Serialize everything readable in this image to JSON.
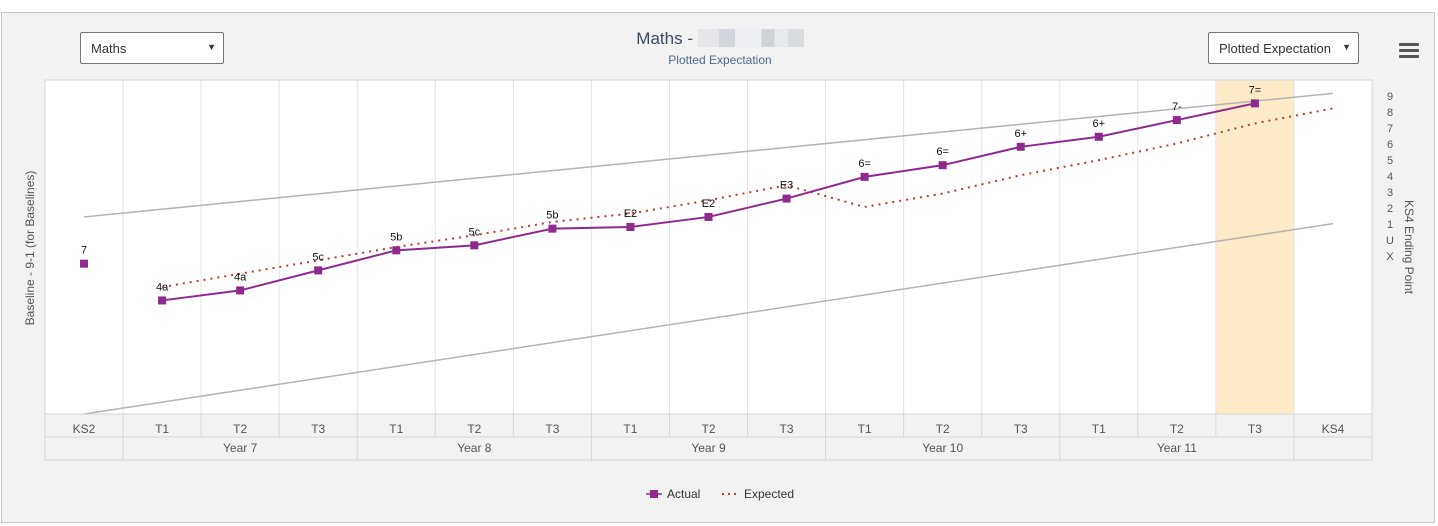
{
  "subject_select": {
    "value": "Maths",
    "arrow": "▼"
  },
  "view_select": {
    "value": "Plotted Expectation",
    "arrow": "▼"
  },
  "header": {
    "title": "Maths - ",
    "subtitle": "Plotted Expectation"
  },
  "menu_icon": "hamburger-menu-icon",
  "colors": {
    "actual": "#8e2a8e",
    "expected": "#c0392b",
    "band": "#b3b3b3",
    "highlight": "#fdebc8"
  },
  "chart_data": {
    "type": "line",
    "title": "Maths - ",
    "subtitle": "Plotted Expectation",
    "ylabel_left": "Baseline - 9-1 (for Baselines)",
    "ylabel_right": "KS4 Ending Point",
    "right_axis_ticks": [
      "9",
      "8",
      "7",
      "6",
      "5",
      "4",
      "3",
      "2",
      "1",
      "U",
      "X"
    ],
    "categories": [
      "KS2",
      "T1",
      "T2",
      "T3",
      "T1",
      "T2",
      "T3",
      "T1",
      "T2",
      "T3",
      "T1",
      "T2",
      "T3",
      "T1",
      "T2",
      "T3",
      "KS4"
    ],
    "groups": [
      {
        "label": "",
        "span": 1
      },
      {
        "label": "Year 7",
        "span": 3
      },
      {
        "label": "Year 8",
        "span": 3
      },
      {
        "label": "Year 9",
        "span": 3
      },
      {
        "label": "Year 10",
        "span": 3
      },
      {
        "label": "Year 11",
        "span": 3
      },
      {
        "label": "",
        "span": 1
      }
    ],
    "highlight_category_index": 15,
    "baseline_point": {
      "label": "7",
      "value": 45
    },
    "series": [
      {
        "name": "Actual",
        "values": [
          null,
          34,
          37,
          43,
          49,
          50.5,
          55.5,
          56,
          59,
          64.5,
          71,
          74.5,
          80,
          83,
          88,
          93,
          null
        ],
        "labels": [
          "",
          "4a",
          "4a",
          "5c",
          "5b",
          "5c",
          "5b",
          "E2",
          "E2",
          "E3",
          "6=",
          "6=",
          "6+",
          "6+",
          "7-",
          "7=",
          ""
        ]
      },
      {
        "name": "Expected",
        "values": [
          null,
          38,
          42,
          46,
          50,
          53.5,
          57.5,
          60,
          64,
          68.5,
          62,
          66,
          71.5,
          76,
          81,
          87,
          91.5
        ]
      }
    ],
    "band_lines": [
      {
        "from": 59,
        "to": 96
      },
      {
        "from": 0,
        "to": 57
      }
    ],
    "ylim": [
      0,
      100
    ],
    "legend": {
      "position": "bottom-center",
      "entries": [
        "Actual",
        "Expected"
      ]
    }
  }
}
